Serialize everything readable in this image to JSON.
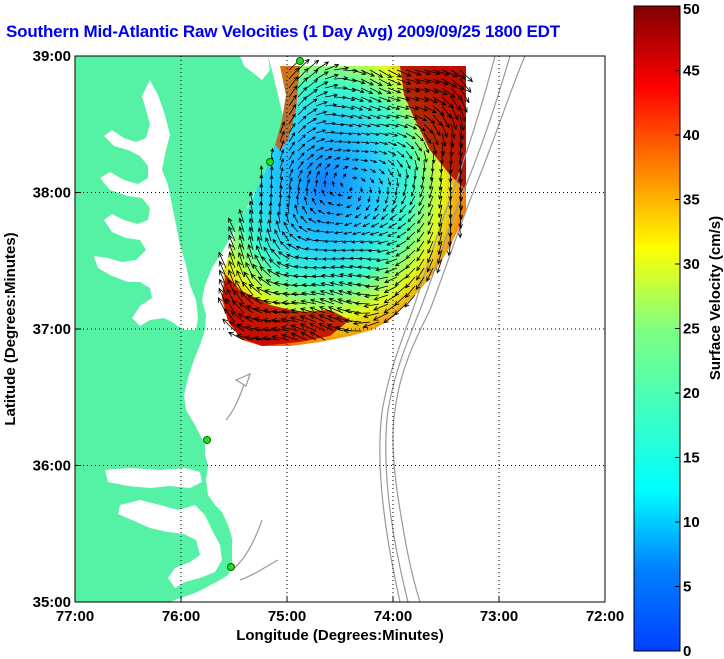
{
  "title": "Southern Mid-Atlantic Raw Velocities (1 Day Avg) 2009/09/25 1800 EDT",
  "map": {
    "xlabel": "Longitude (Degrees:Minutes)",
    "ylabel": "Latitude (Degrees:Minutes)",
    "xticks": [
      {
        "value": -77,
        "label": "77:00"
      },
      {
        "value": -76,
        "label": "76:00"
      },
      {
        "value": -75,
        "label": "75:00"
      },
      {
        "value": -74,
        "label": "74:00"
      },
      {
        "value": -73,
        "label": "73:00"
      },
      {
        "value": -72,
        "label": "72:00"
      }
    ],
    "yticks": [
      {
        "value": 35,
        "label": "35:00"
      },
      {
        "value": 36,
        "label": "36:00"
      },
      {
        "value": 37,
        "label": "37:00"
      },
      {
        "value": 38,
        "label": "38:00"
      },
      {
        "value": 39,
        "label": "39:00"
      }
    ],
    "xlim": [
      -77,
      -72
    ],
    "ylim": [
      35,
      39
    ],
    "grid": true,
    "land_color": "#55f2a6",
    "ocean_color": "#ffffff",
    "bathymetry_color": "#999999",
    "station_color": "#22dd22"
  },
  "colorbar": {
    "label": "Surface Velocity (cm/s)",
    "min": 0,
    "max": 50,
    "ticks": [
      "0",
      "5",
      "10",
      "15",
      "20",
      "25",
      "30",
      "35",
      "40",
      "45",
      "50"
    ],
    "colormap": "jet"
  }
}
